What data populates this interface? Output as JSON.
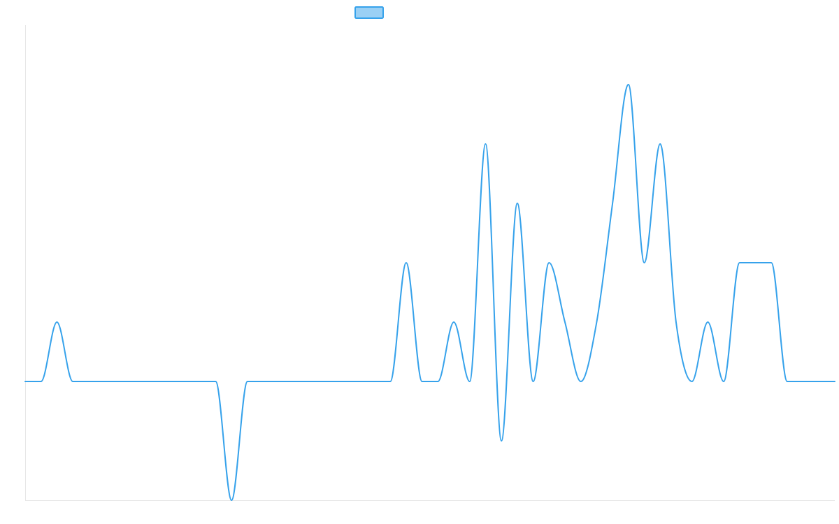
{
  "chart_data": {
    "type": "line",
    "title": "",
    "xlabel": "",
    "ylabel": "",
    "x": [
      0,
      1,
      2,
      3,
      4,
      5,
      6,
      7,
      8,
      9,
      10,
      11,
      12,
      13,
      14,
      15,
      16,
      17,
      18,
      19,
      20,
      21,
      22,
      23,
      24,
      25,
      26,
      27,
      28,
      29,
      30,
      31,
      32,
      33,
      34,
      35,
      36,
      37,
      38,
      39,
      40,
      41,
      42,
      43,
      44,
      45,
      46,
      47,
      48,
      49,
      50,
      51
    ],
    "xlim": [
      0,
      51
    ],
    "ylim": [
      -2,
      6
    ],
    "grid": false,
    "legend": {
      "position": "top-center",
      "show": true
    },
    "series": [
      {
        "color": "#36a2eb",
        "fill": "#9ad0f5",
        "tension": 0.4,
        "values": [
          0,
          0,
          1,
          0,
          0,
          0,
          0,
          0,
          0,
          0,
          0,
          0,
          0,
          -2,
          0,
          0,
          0,
          0,
          0,
          0,
          0,
          0,
          0,
          0,
          2,
          0,
          0,
          1,
          0,
          4,
          -1,
          3,
          0,
          2,
          1,
          0,
          1,
          3,
          5,
          2,
          4,
          1,
          0,
          1,
          0,
          2,
          2,
          2,
          0,
          0,
          0,
          0
        ]
      }
    ]
  }
}
